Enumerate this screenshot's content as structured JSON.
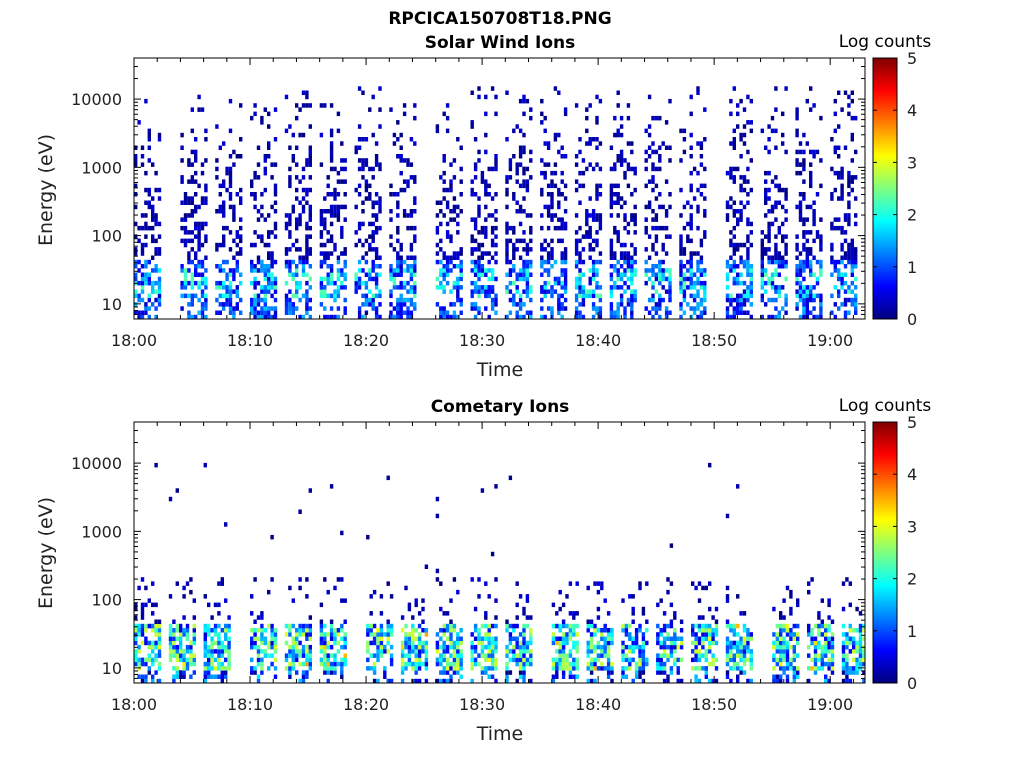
{
  "figure": {
    "title": "RPCICA150708T18.PNG"
  },
  "colormap": {
    "name": "jet",
    "stops": [
      "#00007f",
      "#0000ff",
      "#007fff",
      "#00ffff",
      "#7fff7f",
      "#ffff00",
      "#ff7f00",
      "#ff0000",
      "#7f0000"
    ]
  },
  "chart_data": [
    {
      "type": "heatmap",
      "title": "Solar Wind Ions",
      "xlabel": "Time",
      "ylabel": "Energy (eV)",
      "y_scale": "log",
      "ylim": [
        6,
        40000
      ],
      "xlim": [
        "18:00",
        "19:03"
      ],
      "x_ticks": [
        "18:00",
        "18:10",
        "18:20",
        "18:30",
        "18:40",
        "18:50",
        "19:00"
      ],
      "y_ticks": [
        "10",
        "100",
        "1000",
        "10000"
      ],
      "colorbar": {
        "label": "Log counts",
        "range": [
          0,
          5
        ],
        "ticks": [
          "0",
          "1",
          "2",
          "3",
          "4",
          "5"
        ]
      },
      "pattern": "periodic energy sweeps roughly every 3 minutes; dense counts (log 1-2) below ~40 eV, sparse low counts (log ~0-0.5) extending up to ~15000 eV",
      "sweep_start_times": [
        "18:00",
        "18:04",
        "18:07",
        "18:10",
        "18:13",
        "18:16",
        "18:19",
        "18:22",
        "18:26",
        "18:29",
        "18:32",
        "18:35",
        "18:38",
        "18:41",
        "18:44",
        "18:47",
        "18:51",
        "18:54",
        "18:57",
        "19:00"
      ],
      "peak_log_counts": 2.3
    },
    {
      "type": "heatmap",
      "title": "Cometary Ions",
      "xlabel": "Time",
      "ylabel": "Energy (eV)",
      "y_scale": "log",
      "ylim": [
        6,
        40000
      ],
      "xlim": [
        "18:00",
        "19:03"
      ],
      "x_ticks": [
        "18:00",
        "18:10",
        "18:20",
        "18:30",
        "18:40",
        "18:50",
        "19:00"
      ],
      "y_ticks": [
        "10",
        "100",
        "1000",
        "10000"
      ],
      "colorbar": {
        "label": "Log counts",
        "range": [
          0,
          5
        ],
        "ticks": [
          "0",
          "1",
          "2",
          "3",
          "4",
          "5"
        ]
      },
      "pattern": "periodic bands concentrated between ~8 and ~40 eV with counts up to log ~3.5; sparse single counts scattered up to ~8000 eV",
      "sweep_start_times": [
        "18:00",
        "18:03",
        "18:06",
        "18:10",
        "18:13",
        "18:16",
        "18:20",
        "18:23",
        "18:26",
        "18:29",
        "18:32",
        "18:36",
        "18:39",
        "18:42",
        "18:45",
        "18:48",
        "18:51",
        "18:55",
        "18:58",
        "19:01"
      ],
      "peak_log_counts": 3.6
    }
  ]
}
